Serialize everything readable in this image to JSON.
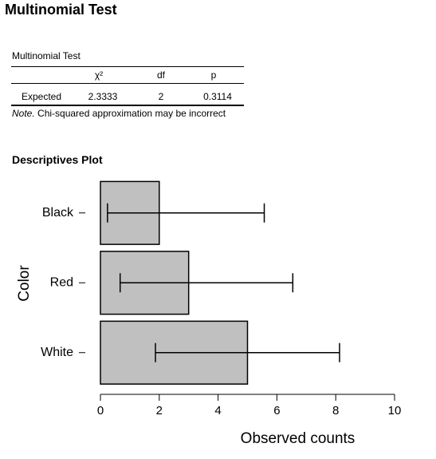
{
  "page": {
    "title": "Multinomial Test"
  },
  "table": {
    "caption": "Multinomial Test",
    "columns": [
      "",
      "χ²",
      "df",
      "p"
    ],
    "rows": [
      {
        "label": "Expected",
        "chi2": "2.3333",
        "df": "2",
        "p": "0.3114"
      }
    ],
    "note_label": "Note.",
    "note_text": "Chi-squared approximation may be incorrect"
  },
  "plot": {
    "title": "Descriptives Plot"
  },
  "chart_data": {
    "type": "bar",
    "orientation": "horizontal",
    "categories": [
      "Black",
      "Red",
      "White"
    ],
    "values": [
      2,
      3,
      5
    ],
    "error_bars": [
      {
        "lower": 0.24,
        "upper": 5.57
      },
      {
        "lower": 0.67,
        "upper": 6.54
      },
      {
        "lower": 1.87,
        "upper": 8.13
      }
    ],
    "xlabel": "Observed counts",
    "ylabel": "Color",
    "xlim": [
      0,
      10
    ],
    "xticks": [
      0,
      2,
      4,
      6,
      8,
      10
    ],
    "bar_color": "#c0c0c0",
    "bar_outline": "#000000",
    "grid": false,
    "legend": "none"
  }
}
